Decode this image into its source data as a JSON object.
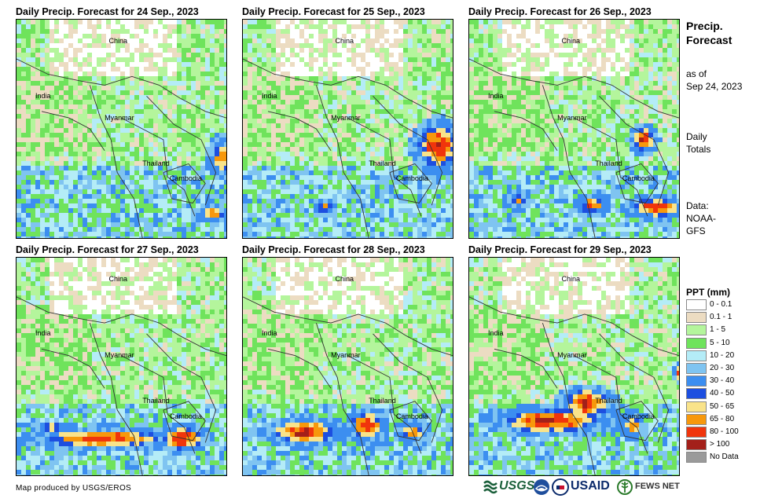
{
  "panels": [
    {
      "title": "Daily Precip. Forecast for 24 Sep., 2023",
      "labels": {
        "china": "China",
        "india": "India",
        "myanmar": "Myanmar",
        "thailand": "Thailand",
        "cambodia": "Cambodia"
      }
    },
    {
      "title": "Daily Precip. Forecast for 25 Sep., 2023",
      "labels": {
        "china": "China",
        "india": "India",
        "myanmar": "Myanmar",
        "thailand": "Thailand",
        "cambodia": "Cambodia"
      }
    },
    {
      "title": "Daily Precip. Forecast for 26 Sep., 2023",
      "labels": {
        "china": "China",
        "india": "India",
        "myanmar": "Myanmar",
        "thailand": "Thailand",
        "cambodia": "Cambodia"
      }
    },
    {
      "title": "Daily Precip. Forecast for 27 Sep., 2023",
      "labels": {
        "china": "China",
        "india": "India",
        "myanmar": "Myanmar",
        "thailand": "Thailand",
        "cambodia": "Cambodia"
      }
    },
    {
      "title": "Daily Precip. Forecast for 28 Sep., 2023",
      "labels": {
        "china": "China",
        "india": "India",
        "myanmar": "Myanmar",
        "thailand": "Thailand",
        "cambodia": "Cambodia"
      }
    },
    {
      "title": "Daily Precip. Forecast for 29 Sep., 2023",
      "labels": {
        "china": "China",
        "india": "India",
        "myanmar": "Myanmar",
        "thailand": "Thailand",
        "cambodia": "Cambodia"
      }
    }
  ],
  "side": {
    "title_line1": "Precip.",
    "title_line2": "Forecast",
    "asof_line1": "as of",
    "asof_line2": "Sep 24, 2023",
    "totals_line1": "Daily",
    "totals_line2": "Totals",
    "data_line1": "Data:",
    "data_line2": "NOAA-",
    "data_line3": "GFS"
  },
  "legend": {
    "title": "PPT (mm)",
    "items": [
      {
        "label": "0 - 0.1",
        "color": "#ffffff"
      },
      {
        "label": "0.1 - 1",
        "color": "#ecdcc2"
      },
      {
        "label": "1 - 5",
        "color": "#b4f59c"
      },
      {
        "label": "5 - 10",
        "color": "#6fe35c"
      },
      {
        "label": "10 - 20",
        "color": "#b4ecf7"
      },
      {
        "label": "20 - 30",
        "color": "#7fc4f1"
      },
      {
        "label": "30 - 40",
        "color": "#3c8ef0"
      },
      {
        "label": "40 - 50",
        "color": "#1d4fe0"
      },
      {
        "label": "50 - 65",
        "color": "#f9e38a"
      },
      {
        "label": "65 - 80",
        "color": "#f7980c"
      },
      {
        "label": "80 - 100",
        "color": "#f0350c"
      },
      {
        "label": "> 100",
        "color": "#a3201a"
      },
      {
        "label": "No Data",
        "color": "#9a9a9a"
      }
    ]
  },
  "footer": {
    "credit": "Map produced by USGS/EROS"
  },
  "logos": {
    "usgs": "USGS",
    "usaid": "USAID",
    "fewsnet": "FEWS NET"
  }
}
